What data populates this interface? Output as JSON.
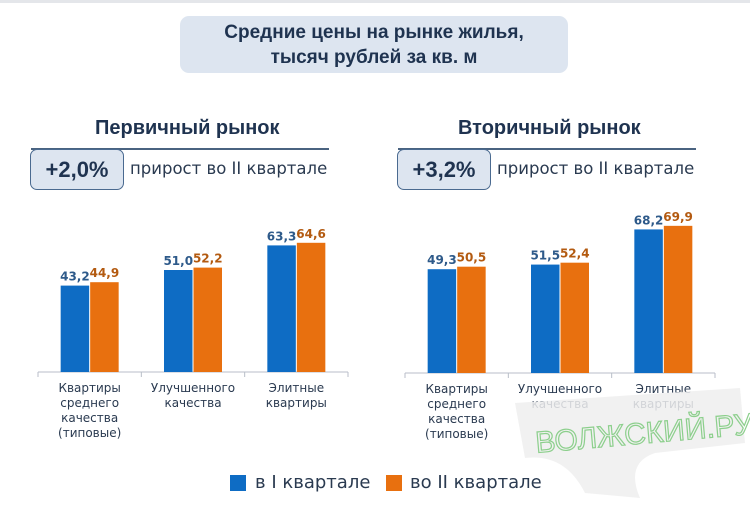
{
  "title_line1": "Средние цены на рынке жилья,",
  "title_line2": "тысяч рублей за кв. м",
  "colors": {
    "q1": "#0e6cc4",
    "q2": "#e8700f",
    "label_q1": "#2e5a8a",
    "label_q2": "#b35a10"
  },
  "legend": {
    "q1": "в I квартале",
    "q2": "во II квартале"
  },
  "watermark": "ВОЛЖСКИЙ.РУ",
  "chart_data": [
    {
      "type": "bar",
      "title": "Первичный рынок",
      "growth": "+2,0%",
      "growth_text": "прирост во II квартале",
      "categories": [
        [
          "Квартиры",
          "среднего",
          "качества",
          "(типовые)"
        ],
        [
          "Улучшенного",
          "качества"
        ],
        [
          "Элитные",
          "квартиры"
        ]
      ],
      "series": [
        {
          "name": "в I квартале",
          "values": [
            43.2,
            51.0,
            63.3
          ],
          "labels": [
            "43,2",
            "51,0",
            "63,3"
          ]
        },
        {
          "name": "во II квартале",
          "values": [
            44.9,
            52.2,
            64.6
          ],
          "labels": [
            "44,9",
            "52,2",
            "64,6"
          ]
        }
      ],
      "ylim": [
        0,
        80
      ]
    },
    {
      "type": "bar",
      "title": "Вторичный рынок",
      "growth": "+3,2%",
      "growth_text": "прирост во II квартале",
      "categories": [
        [
          "Квартиры",
          "среднего",
          "качества",
          "(типовые)"
        ],
        [
          "Улучшенного",
          "качества"
        ],
        [
          "Элитные",
          "квартиры"
        ]
      ],
      "series": [
        {
          "name": "в I квартале",
          "values": [
            49.3,
            51.5,
            68.2
          ],
          "labels": [
            "49,3",
            "51,5",
            "68,2"
          ]
        },
        {
          "name": "во II квартале",
          "values": [
            50.5,
            52.4,
            69.9
          ],
          "labels": [
            "50,5",
            "52,4",
            "69,9"
          ]
        }
      ],
      "ylim": [
        0,
        76
      ]
    }
  ]
}
